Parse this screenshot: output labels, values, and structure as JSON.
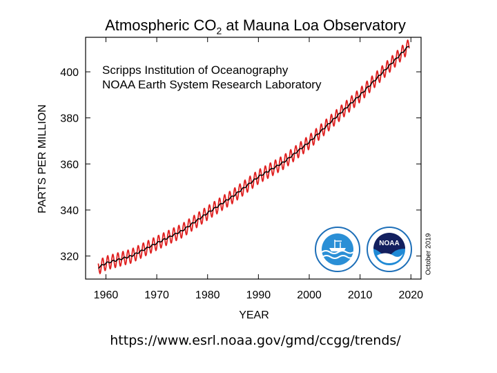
{
  "title_main": "Atmospheric CO",
  "title_sub": "2",
  "title_rest": " at Mauna Loa Observatory",
  "notes": [
    "Scripps Institution of Oceanography",
    "NOAA Earth System Research Laboratory"
  ],
  "date_label": "October 2019",
  "url": "https://www.esrl.noaa.gov/gmd/ccgg/trends/",
  "logos": [
    "noaa-research-logo",
    "noaa-logo"
  ],
  "logo_text": "NOAA",
  "colors": {
    "monthly": "#e02020",
    "trend": "#000000"
  },
  "chart_data": {
    "type": "line",
    "xlabel": "YEAR",
    "ylabel": "PARTS PER MILLION",
    "xlim": [
      1956,
      2022
    ],
    "ylim": [
      310,
      415
    ],
    "xticks": [
      1960,
      1970,
      1980,
      1990,
      2000,
      2010,
      2020
    ],
    "yticks": [
      320,
      340,
      360,
      380,
      400
    ],
    "seasonal_amplitude_ppm": 3,
    "series": [
      {
        "role": "trend",
        "x": [
          1958.5,
          1960,
          1965,
          1970,
          1975,
          1980,
          1985,
          1990,
          1995,
          2000,
          2005,
          2010,
          2015,
          2019.7
        ],
        "y": [
          315,
          316.9,
          320,
          325.6,
          331,
          338.7,
          346,
          354.4,
          360.8,
          369.5,
          379.8,
          389.9,
          401,
          411.5
        ]
      },
      {
        "role": "monthly",
        "x": [
          1958.5,
          1960,
          1965,
          1970,
          1975,
          1980,
          1985,
          1990,
          1995,
          2000,
          2005,
          2010,
          2015,
          2019.7
        ],
        "y": [
          315,
          316.9,
          320,
          325.6,
          331,
          338.7,
          346,
          354.4,
          360.8,
          369.5,
          379.8,
          389.9,
          401,
          411.5
        ]
      }
    ]
  }
}
